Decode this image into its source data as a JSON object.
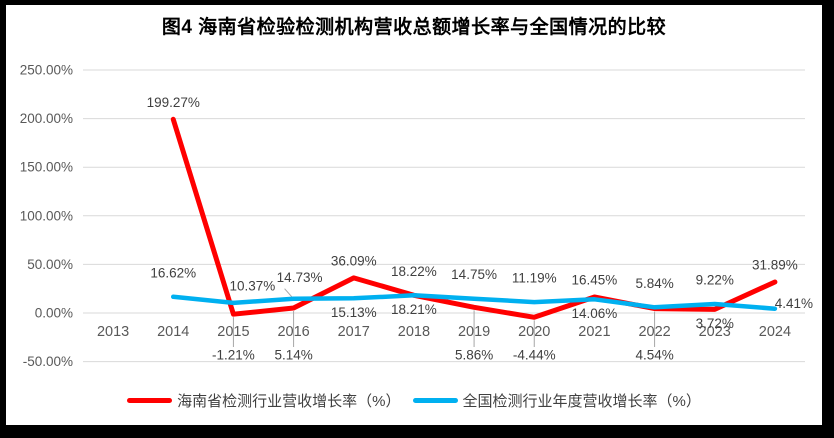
{
  "title": "图4 海南省检验检测机构营收总额增长率与全国情况的比较",
  "chart_data": {
    "type": "line",
    "categories": [
      "2013",
      "2014",
      "2015",
      "2016",
      "2017",
      "2018",
      "2019",
      "2020",
      "2021",
      "2022",
      "2023",
      "2024"
    ],
    "series": [
      {
        "id": "hainan",
        "name": "海南省检测行业营收增长率（%）",
        "color": "#FF0000",
        "values": [
          null,
          199.27,
          -1.21,
          5.14,
          36.09,
          18.21,
          5.86,
          -4.44,
          16.45,
          4.54,
          3.72,
          31.89
        ],
        "label_positions": [
          null,
          "above",
          "axis-below",
          "axis-below",
          "above",
          "below",
          "axis-below",
          "axis-below",
          "above",
          "axis-below",
          "below",
          "above"
        ]
      },
      {
        "id": "national",
        "name": "全国检测行业年度营收增长率（%）",
        "color": "#00B0F0",
        "values": [
          null,
          16.62,
          10.37,
          14.73,
          15.13,
          18.22,
          14.75,
          11.19,
          14.06,
          5.84,
          9.22,
          4.41
        ],
        "label_positions": [
          null,
          "above",
          "above-right",
          "above-leader",
          "below",
          "above",
          "above",
          "above",
          "below",
          "above",
          "above",
          "right"
        ]
      }
    ],
    "title": "图4 海南省检验检测机构营收总额增长率与全国情况的比较",
    "xlabel": "",
    "ylabel": "",
    "ylim": [
      -50,
      250
    ],
    "ytick_labels": [
      "250.00%",
      "200.00%",
      "150.00%",
      "100.00%",
      "50.00%",
      "0.00%",
      "-50.00%"
    ],
    "grid": true,
    "data_labels": true,
    "legend_position": "bottom"
  },
  "colors": {
    "page_background": "#000000",
    "chart_background": "#FFFFFF",
    "gridline": "#D9D9D9",
    "axis_text": "#595959",
    "data_label_text": "#404040",
    "leader_line": "#A6A6A6",
    "series_hainan": "#FF0000",
    "series_national": "#00B0F0"
  }
}
